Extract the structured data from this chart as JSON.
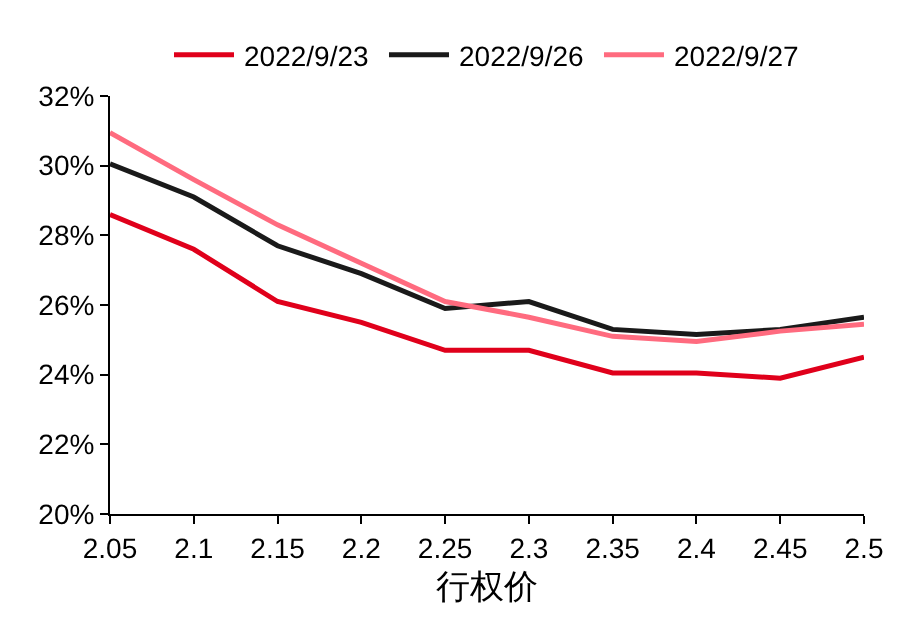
{
  "chart_data": {
    "type": "line",
    "xlabel": "行权价",
    "x": [
      2.05,
      2.1,
      2.15,
      2.2,
      2.25,
      2.3,
      2.35,
      2.4,
      2.45,
      2.5
    ],
    "series": [
      {
        "name": "2022/9/23",
        "color": "#e0001b",
        "values": [
          28.6,
          27.6,
          26.1,
          25.5,
          24.7,
          24.7,
          24.05,
          24.05,
          23.9,
          24.5
        ]
      },
      {
        "name": "2022/9/26",
        "color": "#1a1a1a",
        "values": [
          30.05,
          29.1,
          27.7,
          26.9,
          25.9,
          26.1,
          25.3,
          25.15,
          25.3,
          25.65
        ]
      },
      {
        "name": "2022/9/27",
        "color": "#ff6b7f",
        "values": [
          30.95,
          29.6,
          28.3,
          27.2,
          26.1,
          25.65,
          25.1,
          24.95,
          25.25,
          25.45
        ]
      }
    ],
    "xlim": [
      2.05,
      2.5
    ],
    "xticks": [
      2.05,
      2.1,
      2.15,
      2.2,
      2.25,
      2.3,
      2.35,
      2.4,
      2.45,
      2.5
    ],
    "ylim": [
      20,
      32
    ],
    "yticks": [
      {
        "value": 20,
        "label": "20%"
      },
      {
        "value": 22,
        "label": "22%"
      },
      {
        "value": 24,
        "label": "24%"
      },
      {
        "value": 26,
        "label": "26%"
      },
      {
        "value": 28,
        "label": "28%"
      },
      {
        "value": 30,
        "label": "30%"
      },
      {
        "value": 32,
        "label": "32%"
      }
    ],
    "legend": "top",
    "marker": "none",
    "line_style": "solid"
  }
}
